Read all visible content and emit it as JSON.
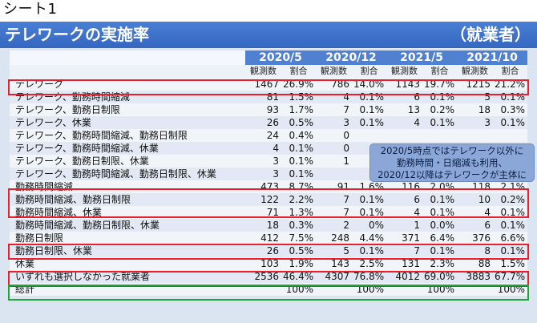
{
  "sheet_label": "シート1",
  "title": "テレワークの実施率",
  "subtitle": "（就業者）",
  "periods": [
    "2020/5",
    "2020/12",
    "2021/5",
    "2021/10"
  ],
  "col_headers": {
    "count": "観測数",
    "ratio": "割合"
  },
  "rows": [
    {
      "label": "テレワーク",
      "values": [
        "1467",
        "26.9%",
        "786",
        "14.0%",
        "1143",
        "19.7%",
        "1215",
        "21.2%"
      ]
    },
    {
      "label": "テレワーク、勤務時間縮減",
      "values": [
        "81",
        "1.5%",
        "4",
        "0.1%",
        "6",
        "0.1%",
        "5",
        "0.1%"
      ]
    },
    {
      "label": "テレワーク、勤務日制限",
      "values": [
        "93",
        "1.7%",
        "7",
        "0.1%",
        "13",
        "0.2%",
        "18",
        "0.3%"
      ]
    },
    {
      "label": "テレワーク、休業",
      "values": [
        "26",
        "0.5%",
        "3",
        "0.1%",
        "4",
        "0.1%",
        "3",
        "0.1%"
      ]
    },
    {
      "label": "テレワーク、勤務時間縮減、勤務日制限",
      "values": [
        "24",
        "0.4%",
        "0",
        "",
        "",
        "",
        "",
        ""
      ]
    },
    {
      "label": "テレワーク、勤務時間縮減、休業",
      "values": [
        "4",
        "0.1%",
        "0",
        "",
        "",
        "",
        "",
        ""
      ]
    },
    {
      "label": "テレワーク、勤務日制限、休業",
      "values": [
        "3",
        "0.1%",
        "1",
        "",
        "",
        "",
        "",
        ""
      ]
    },
    {
      "label": "テレワーク、勤務時間縮減、勤務日制限、休業",
      "values": [
        "3",
        "0.1%",
        "",
        "",
        "",
        "",
        "",
        ""
      ]
    },
    {
      "label": "勤務時間縮減",
      "values": [
        "473",
        "8.7%",
        "91",
        "1.6%",
        "116",
        "2.0%",
        "118",
        "2.1%"
      ]
    },
    {
      "label": "勤務時間縮減、勤務日制限",
      "values": [
        "122",
        "2.2%",
        "7",
        "0.1%",
        "6",
        "0.1%",
        "10",
        "0.2%"
      ]
    },
    {
      "label": "勤務時間縮減、休業",
      "values": [
        "71",
        "1.3%",
        "7",
        "0.1%",
        "4",
        "0.1%",
        "4",
        "0.1%"
      ]
    },
    {
      "label": "勤務時間縮減、勤務日制限、休業",
      "values": [
        "18",
        "0.3%",
        "2",
        "0%",
        "1",
        "0.0%",
        "6",
        "0.1%"
      ]
    },
    {
      "label": "勤務日制限",
      "values": [
        "412",
        "7.5%",
        "248",
        "4.4%",
        "371",
        "6.4%",
        "376",
        "6.6%"
      ]
    },
    {
      "label": "勤務日制限、休業",
      "values": [
        "26",
        "0.5%",
        "5",
        "0.1%",
        "7",
        "0.1%",
        "8",
        "0.1%"
      ]
    },
    {
      "label": "休業",
      "values": [
        "103",
        "1.9%",
        "143",
        "2.5%",
        "131",
        "2.3%",
        "88",
        "1.5%"
      ]
    },
    {
      "label": "いずれも選択しなかった就業者",
      "values": [
        "2536",
        "46.4%",
        "4307",
        "76.8%",
        "4012",
        "69.0%",
        "3883",
        "67.7%"
      ]
    },
    {
      "label": "総計",
      "values": [
        "",
        "100%",
        "",
        "100%",
        "",
        "100%",
        "",
        "100%"
      ]
    }
  ],
  "callout": {
    "line1": "2020/5時点ではテレワーク以外に",
    "line2": "勤務時間・日縮減も利用、",
    "line3": "2020/12以降はテレワークが主体に"
  }
}
